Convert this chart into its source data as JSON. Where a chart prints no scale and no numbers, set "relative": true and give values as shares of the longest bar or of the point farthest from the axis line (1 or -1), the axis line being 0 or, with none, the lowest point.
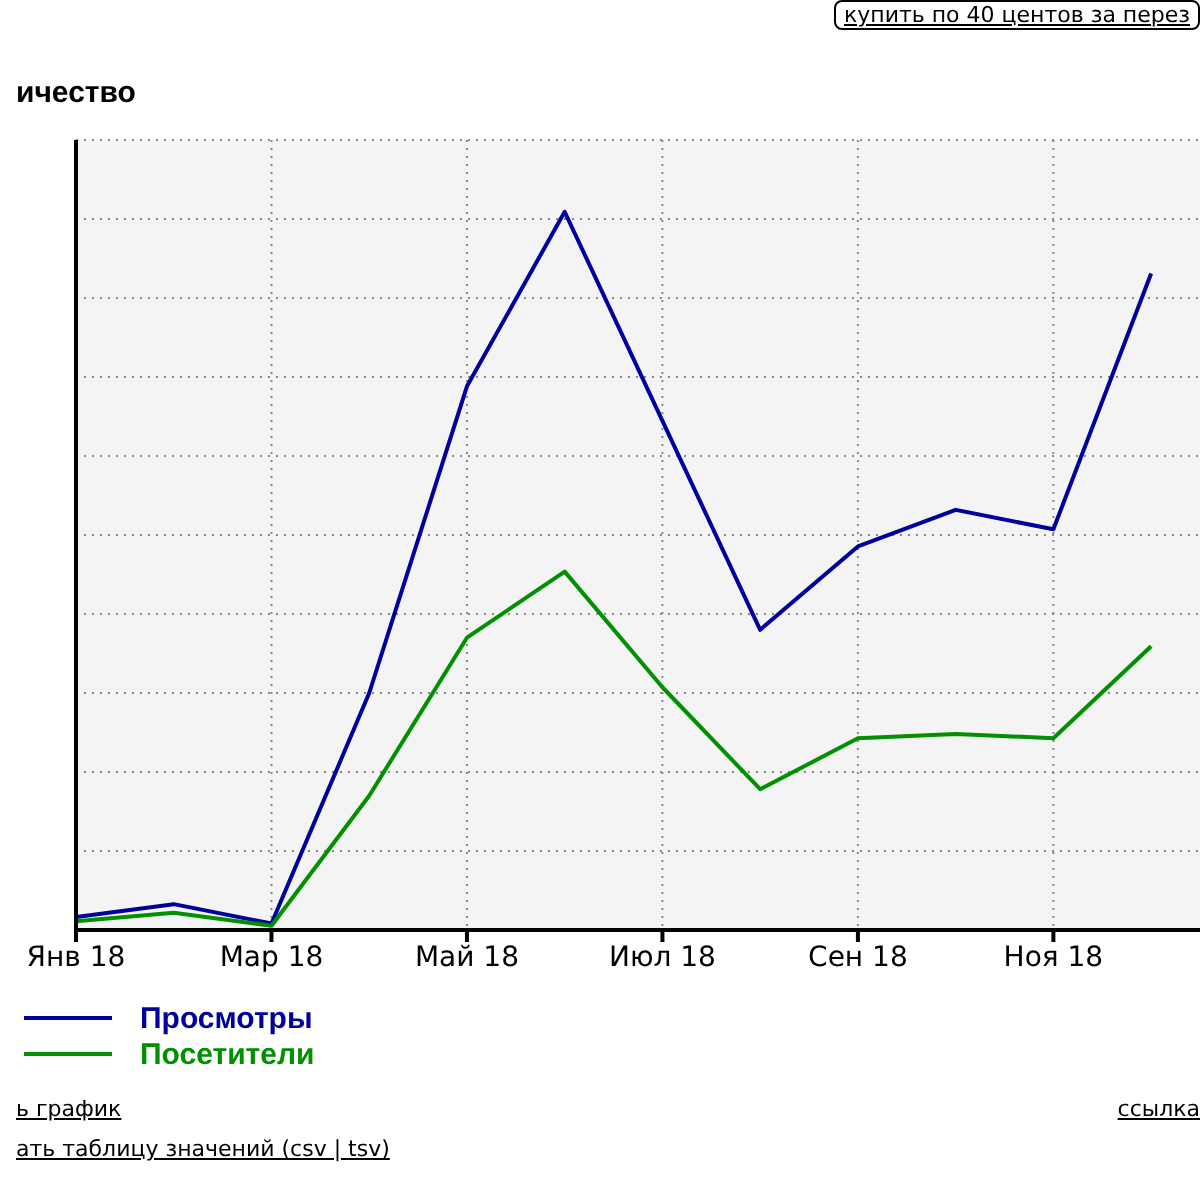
{
  "chart_data": {
    "type": "line",
    "ylabel": "ичество",
    "categories": [
      "Янв 18",
      null,
      "Мар 18",
      null,
      "Май 18",
      null,
      "Июл 18",
      null,
      "Сен 18",
      null,
      "Ноя 18",
      null
    ],
    "relative": true,
    "series": [
      {
        "name": "Просмотры",
        "color": "#00009c",
        "values": [
          0.018,
          0.036,
          0.009,
          0.33,
          0.757,
          1,
          0.709,
          0.418,
          0.534,
          0.585,
          0.558,
          0.914
        ]
      },
      {
        "name": "Посетители",
        "color": "#009000",
        "values": [
          0.012,
          0.024,
          0.006,
          0.187,
          0.407,
          0.499,
          0.338,
          0.196,
          0.267,
          0.273,
          0.267,
          0.395
        ]
      }
    ],
    "grid": true,
    "legend": "bottom left",
    "marker": "none",
    "line_style": "solid",
    "annotations": [
      "купить по 40 центов за перез",
      "ь график",
      "ссылка",
      "ать таблицу значений (csv | tsv)"
    ]
  }
}
